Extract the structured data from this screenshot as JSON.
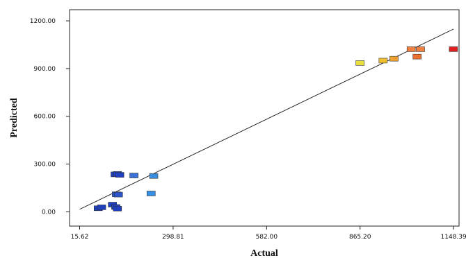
{
  "chart_data": {
    "type": "scatter",
    "xlabel": "Actual",
    "ylabel": "Predicted",
    "x_ticks": [
      "15.62",
      "298.81",
      "582.00",
      "865.20",
      "1148.39"
    ],
    "y_ticks": [
      "0.00",
      "300.00",
      "600.00",
      "900.00",
      "1200.00"
    ],
    "x_tick_values": [
      15.62,
      298.81,
      582.0,
      865.2,
      1148.39
    ],
    "y_tick_values": [
      0,
      300,
      600,
      900,
      1200
    ],
    "xlim": [
      -15,
      1165
    ],
    "ylim": [
      -90,
      1270
    ],
    "grid": false,
    "legend": "none",
    "points": [
      {
        "x": 123,
        "y": 235,
        "color": "#1f3fbf"
      },
      {
        "x": 130,
        "y": 238,
        "color": "#1f3fbf"
      },
      {
        "x": 137,
        "y": 232,
        "color": "#1f3fbf"
      },
      {
        "x": 127,
        "y": 110,
        "color": "#2b55c8"
      },
      {
        "x": 133,
        "y": 108,
        "color": "#2b55c8"
      },
      {
        "x": 180,
        "y": 228,
        "color": "#3a70d8"
      },
      {
        "x": 240,
        "y": 225,
        "color": "#3a8ee0"
      },
      {
        "x": 232,
        "y": 115,
        "color": "#3a8ee0"
      },
      {
        "x": 72,
        "y": 22,
        "color": "#1f3fbf"
      },
      {
        "x": 82,
        "y": 28,
        "color": "#1f3fbf"
      },
      {
        "x": 115,
        "y": 45,
        "color": "#1f3fbf"
      },
      {
        "x": 125,
        "y": 30,
        "color": "#1f3fbf"
      },
      {
        "x": 130,
        "y": 20,
        "color": "#1f3fbf"
      },
      {
        "x": 865,
        "y": 935,
        "color": "#e8e040"
      },
      {
        "x": 935,
        "y": 950,
        "color": "#f0c030"
      },
      {
        "x": 968,
        "y": 962,
        "color": "#f0a030"
      },
      {
        "x": 1020,
        "y": 1022,
        "color": "#f08040"
      },
      {
        "x": 1048,
        "y": 1022,
        "color": "#f08040"
      },
      {
        "x": 1038,
        "y": 975,
        "color": "#f07030"
      },
      {
        "x": 1148,
        "y": 1022,
        "color": "#e02020"
      }
    ],
    "fit_line": {
      "x": [
        15.62,
        1148.39
      ],
      "y": [
        15.62,
        1148.39
      ]
    }
  }
}
